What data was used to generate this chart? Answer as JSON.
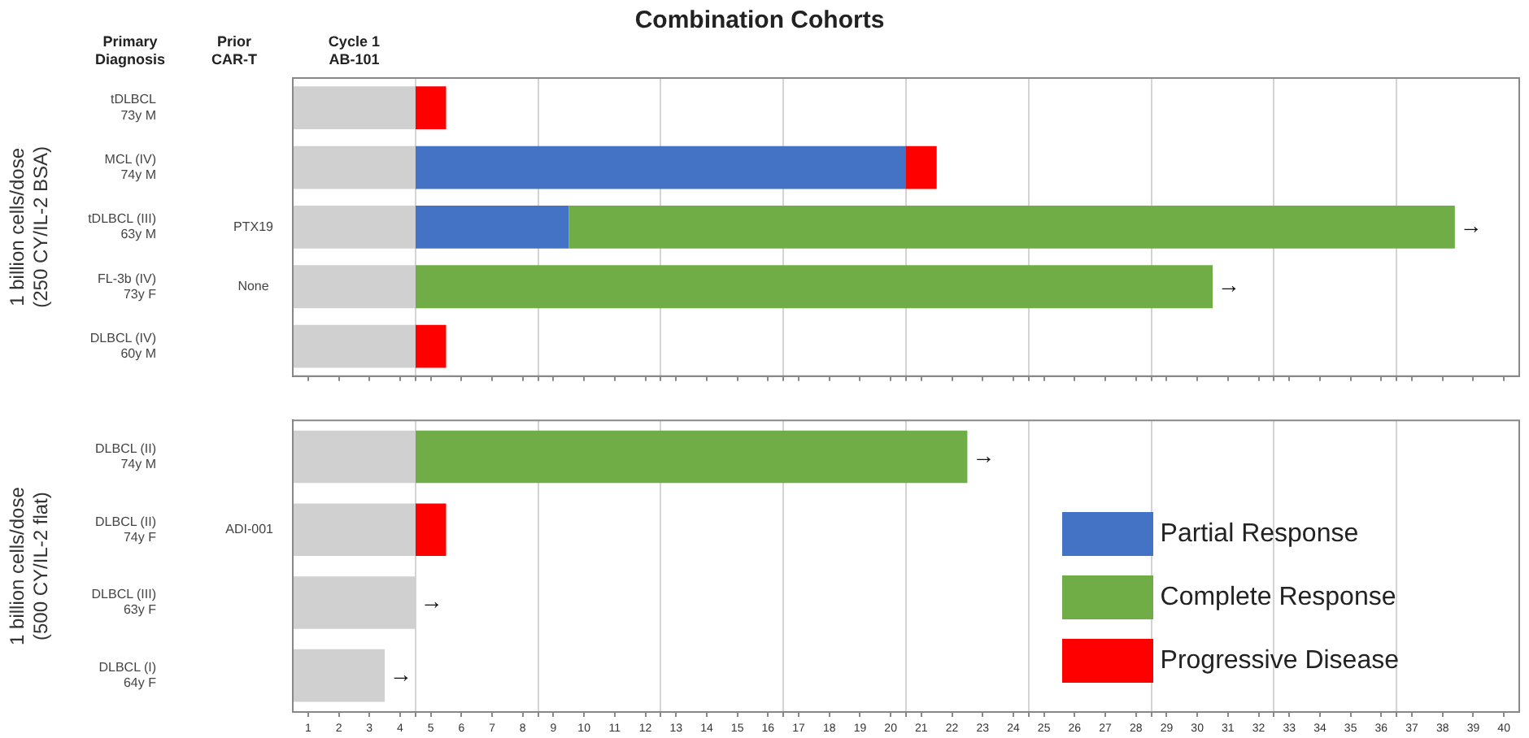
{
  "chart_data": [
    {
      "type": "bar",
      "orientation": "horizontal",
      "stacked": true,
      "title": "Combination Cohorts",
      "ylabel": "1 billion cells/dose\n(250 CY/IL-2 BSA)",
      "categories": [
        "tDLBCL\n73y M",
        "MCL (IV)\n74y M",
        "tDLBCL (III)\n63y M",
        "FL-3b (IV)\n73y F",
        "DLBCL (IV)\n60y M"
      ],
      "y2_categories": [
        null,
        null,
        "PTX19",
        "None",
        null
      ],
      "series": [
        {
          "color": "#d0d0d0",
          "values": [
            4,
            4,
            4,
            4,
            4
          ]
        },
        {
          "color": "#4472c4",
          "values": [
            null,
            16,
            5,
            null,
            null
          ]
        },
        {
          "color": "#70ad47",
          "values": [
            null,
            null,
            28.9,
            26,
            null
          ]
        },
        {
          "color": "#ff0000",
          "values": [
            1,
            1,
            null,
            null,
            1
          ]
        }
      ],
      "xlim": [
        0,
        40
      ],
      "xticks": [
        {
          "value": 0.5,
          "label": "1"
        },
        {
          "value": 1.5,
          "label": "2"
        },
        {
          "value": 2.5,
          "label": "3"
        },
        {
          "value": 3.5,
          "label": "4"
        },
        {
          "value": 4,
          "label": null
        },
        {
          "value": 4.5,
          "label": "5"
        },
        {
          "value": 5.5,
          "label": "6"
        },
        {
          "value": 6.5,
          "label": "7"
        },
        {
          "value": 7.5,
          "label": "8"
        },
        {
          "value": 8,
          "label": null
        },
        {
          "value": 8.5,
          "label": "9"
        },
        {
          "value": 9.5,
          "label": "10"
        },
        {
          "value": 10.5,
          "label": "11"
        },
        {
          "value": 11.5,
          "label": "12"
        },
        {
          "value": 12,
          "label": null
        },
        {
          "value": 12.5,
          "label": "13"
        },
        {
          "value": 13.5,
          "label": "14"
        },
        {
          "value": 14.5,
          "label": "15"
        },
        {
          "value": 15.5,
          "label": "16"
        },
        {
          "value": 16,
          "label": null
        },
        {
          "value": 16.5,
          "label": "17"
        },
        {
          "value": 17.5,
          "label": "18"
        },
        {
          "value": 18.5,
          "label": "19"
        },
        {
          "value": 19.5,
          "label": "20"
        },
        {
          "value": 20,
          "label": null
        },
        {
          "value": 20.5,
          "label": "21"
        },
        {
          "value": 21.5,
          "label": "22"
        },
        {
          "value": 22.5,
          "label": "23"
        },
        {
          "value": 23.5,
          "label": "24"
        },
        {
          "value": 24,
          "label": null
        },
        {
          "value": 24.5,
          "label": "25"
        },
        {
          "value": 25.5,
          "label": "26"
        },
        {
          "value": 26.5,
          "label": "27"
        },
        {
          "value": 27.5,
          "label": "28"
        },
        {
          "value": 28,
          "label": null
        },
        {
          "value": 28.5,
          "label": "29"
        },
        {
          "value": 29.5,
          "label": "30"
        },
        {
          "value": 30.5,
          "label": "31"
        },
        {
          "value": 31.5,
          "label": "32"
        },
        {
          "value": 32,
          "label": null
        },
        {
          "value": 32.5,
          "label": "33"
        },
        {
          "value": 33.5,
          "label": "34"
        },
        {
          "value": 34.5,
          "label": "35"
        },
        {
          "value": 35.5,
          "label": "36"
        },
        {
          "value": 36,
          "label": null
        },
        {
          "value": 36.5,
          "label": "37"
        },
        {
          "value": 37.5,
          "label": "38"
        },
        {
          "value": 38.5,
          "label": "39"
        },
        {
          "value": 39.5,
          "label": "40"
        }
      ],
      "grid": "x",
      "tick_labels": "y",
      "annotations": [
        "Primary\nDiagnosis",
        "Prior\nCAR-T",
        "Cycle 1\nAB-101",
        {
          "text": "→",
          "x": 37.9,
          "y": "tDLBCL (III)\n63y M"
        },
        {
          "text": "→",
          "x": 30,
          "y": "FL-3b (IV)\n73y F"
        }
      ]
    },
    {
      "type": "bar",
      "orientation": "horizontal",
      "stacked": true,
      "ylabel": "1 billion cells/dose\n(500 CY/IL-2 flat)",
      "categories": [
        "DLBCL (II)\n74y M",
        "DLBCL (II)\n74y F",
        "DLBCL (III)\n63y F",
        "DLBCL (I)\n64y F"
      ],
      "y2_categories": [
        null,
        "ADI-001",
        null,
        null
      ],
      "series": [
        {
          "color": "#d0d0d0",
          "values": [
            4,
            4,
            4,
            3
          ]
        },
        {
          "name": "Partial Response",
          "color": "#4472c4",
          "values": [
            null,
            null,
            null,
            null
          ]
        },
        {
          "name": "Complete Response",
          "color": "#70ad47",
          "values": [
            18,
            null,
            null,
            null
          ]
        },
        {
          "name": "Progressive Disease",
          "color": "#ff0000",
          "values": [
            null,
            1,
            null,
            null
          ]
        }
      ],
      "xlim": [
        0,
        40
      ],
      "xticks": [
        {
          "value": 0.5,
          "label": "1"
        },
        {
          "value": 1.5,
          "label": "2"
        },
        {
          "value": 2.5,
          "label": "3"
        },
        {
          "value": 3.5,
          "label": "4"
        },
        {
          "value": 4,
          "label": null
        },
        {
          "value": 4.5,
          "label": "5"
        },
        {
          "value": 5.5,
          "label": "6"
        },
        {
          "value": 6.5,
          "label": "7"
        },
        {
          "value": 7.5,
          "label": "8"
        },
        {
          "value": 8,
          "label": null
        },
        {
          "value": 8.5,
          "label": "9"
        },
        {
          "value": 9.5,
          "label": "10"
        },
        {
          "value": 10.5,
          "label": "11"
        },
        {
          "value": 11.5,
          "label": "12"
        },
        {
          "value": 12,
          "label": null
        },
        {
          "value": 12.5,
          "label": "13"
        },
        {
          "value": 13.5,
          "label": "14"
        },
        {
          "value": 14.5,
          "label": "15"
        },
        {
          "value": 15.5,
          "label": "16"
        },
        {
          "value": 16,
          "label": null
        },
        {
          "value": 16.5,
          "label": "17"
        },
        {
          "value": 17.5,
          "label": "18"
        },
        {
          "value": 18.5,
          "label": "19"
        },
        {
          "value": 19.5,
          "label": "20"
        },
        {
          "value": 20,
          "label": null
        },
        {
          "value": 20.5,
          "label": "21"
        },
        {
          "value": 21.5,
          "label": "22"
        },
        {
          "value": 22.5,
          "label": "23"
        },
        {
          "value": 23.5,
          "label": "24"
        },
        {
          "value": 24,
          "label": null
        },
        {
          "value": 24.5,
          "label": "25"
        },
        {
          "value": 25.5,
          "label": "26"
        },
        {
          "value": 26.5,
          "label": "27"
        },
        {
          "value": 27.5,
          "label": "28"
        },
        {
          "value": 28,
          "label": null
        },
        {
          "value": 28.5,
          "label": "29"
        },
        {
          "value": 29.5,
          "label": "30"
        },
        {
          "value": 30.5,
          "label": "31"
        },
        {
          "value": 31.5,
          "label": "32"
        },
        {
          "value": 32,
          "label": null
        },
        {
          "value": 32.5,
          "label": "33"
        },
        {
          "value": 33.5,
          "label": "34"
        },
        {
          "value": 34.5,
          "label": "35"
        },
        {
          "value": 35.5,
          "label": "36"
        },
        {
          "value": 36,
          "label": null
        },
        {
          "value": 36.5,
          "label": "37"
        },
        {
          "value": 37.5,
          "label": "38"
        },
        {
          "value": 38.5,
          "label": "39"
        },
        {
          "value": 39.5,
          "label": "40"
        }
      ],
      "grid": "x",
      "legend": "bottom right",
      "annotations": [
        {
          "text": "→",
          "x": 22,
          "y": "DLBCL (II)\n74y M"
        },
        {
          "text": "→",
          "x": 4,
          "y": "DLBCL (III)\n63y F"
        },
        {
          "text": "→",
          "x": 3,
          "y": "DLBCL (I)\n64y F"
        }
      ]
    }
  ]
}
